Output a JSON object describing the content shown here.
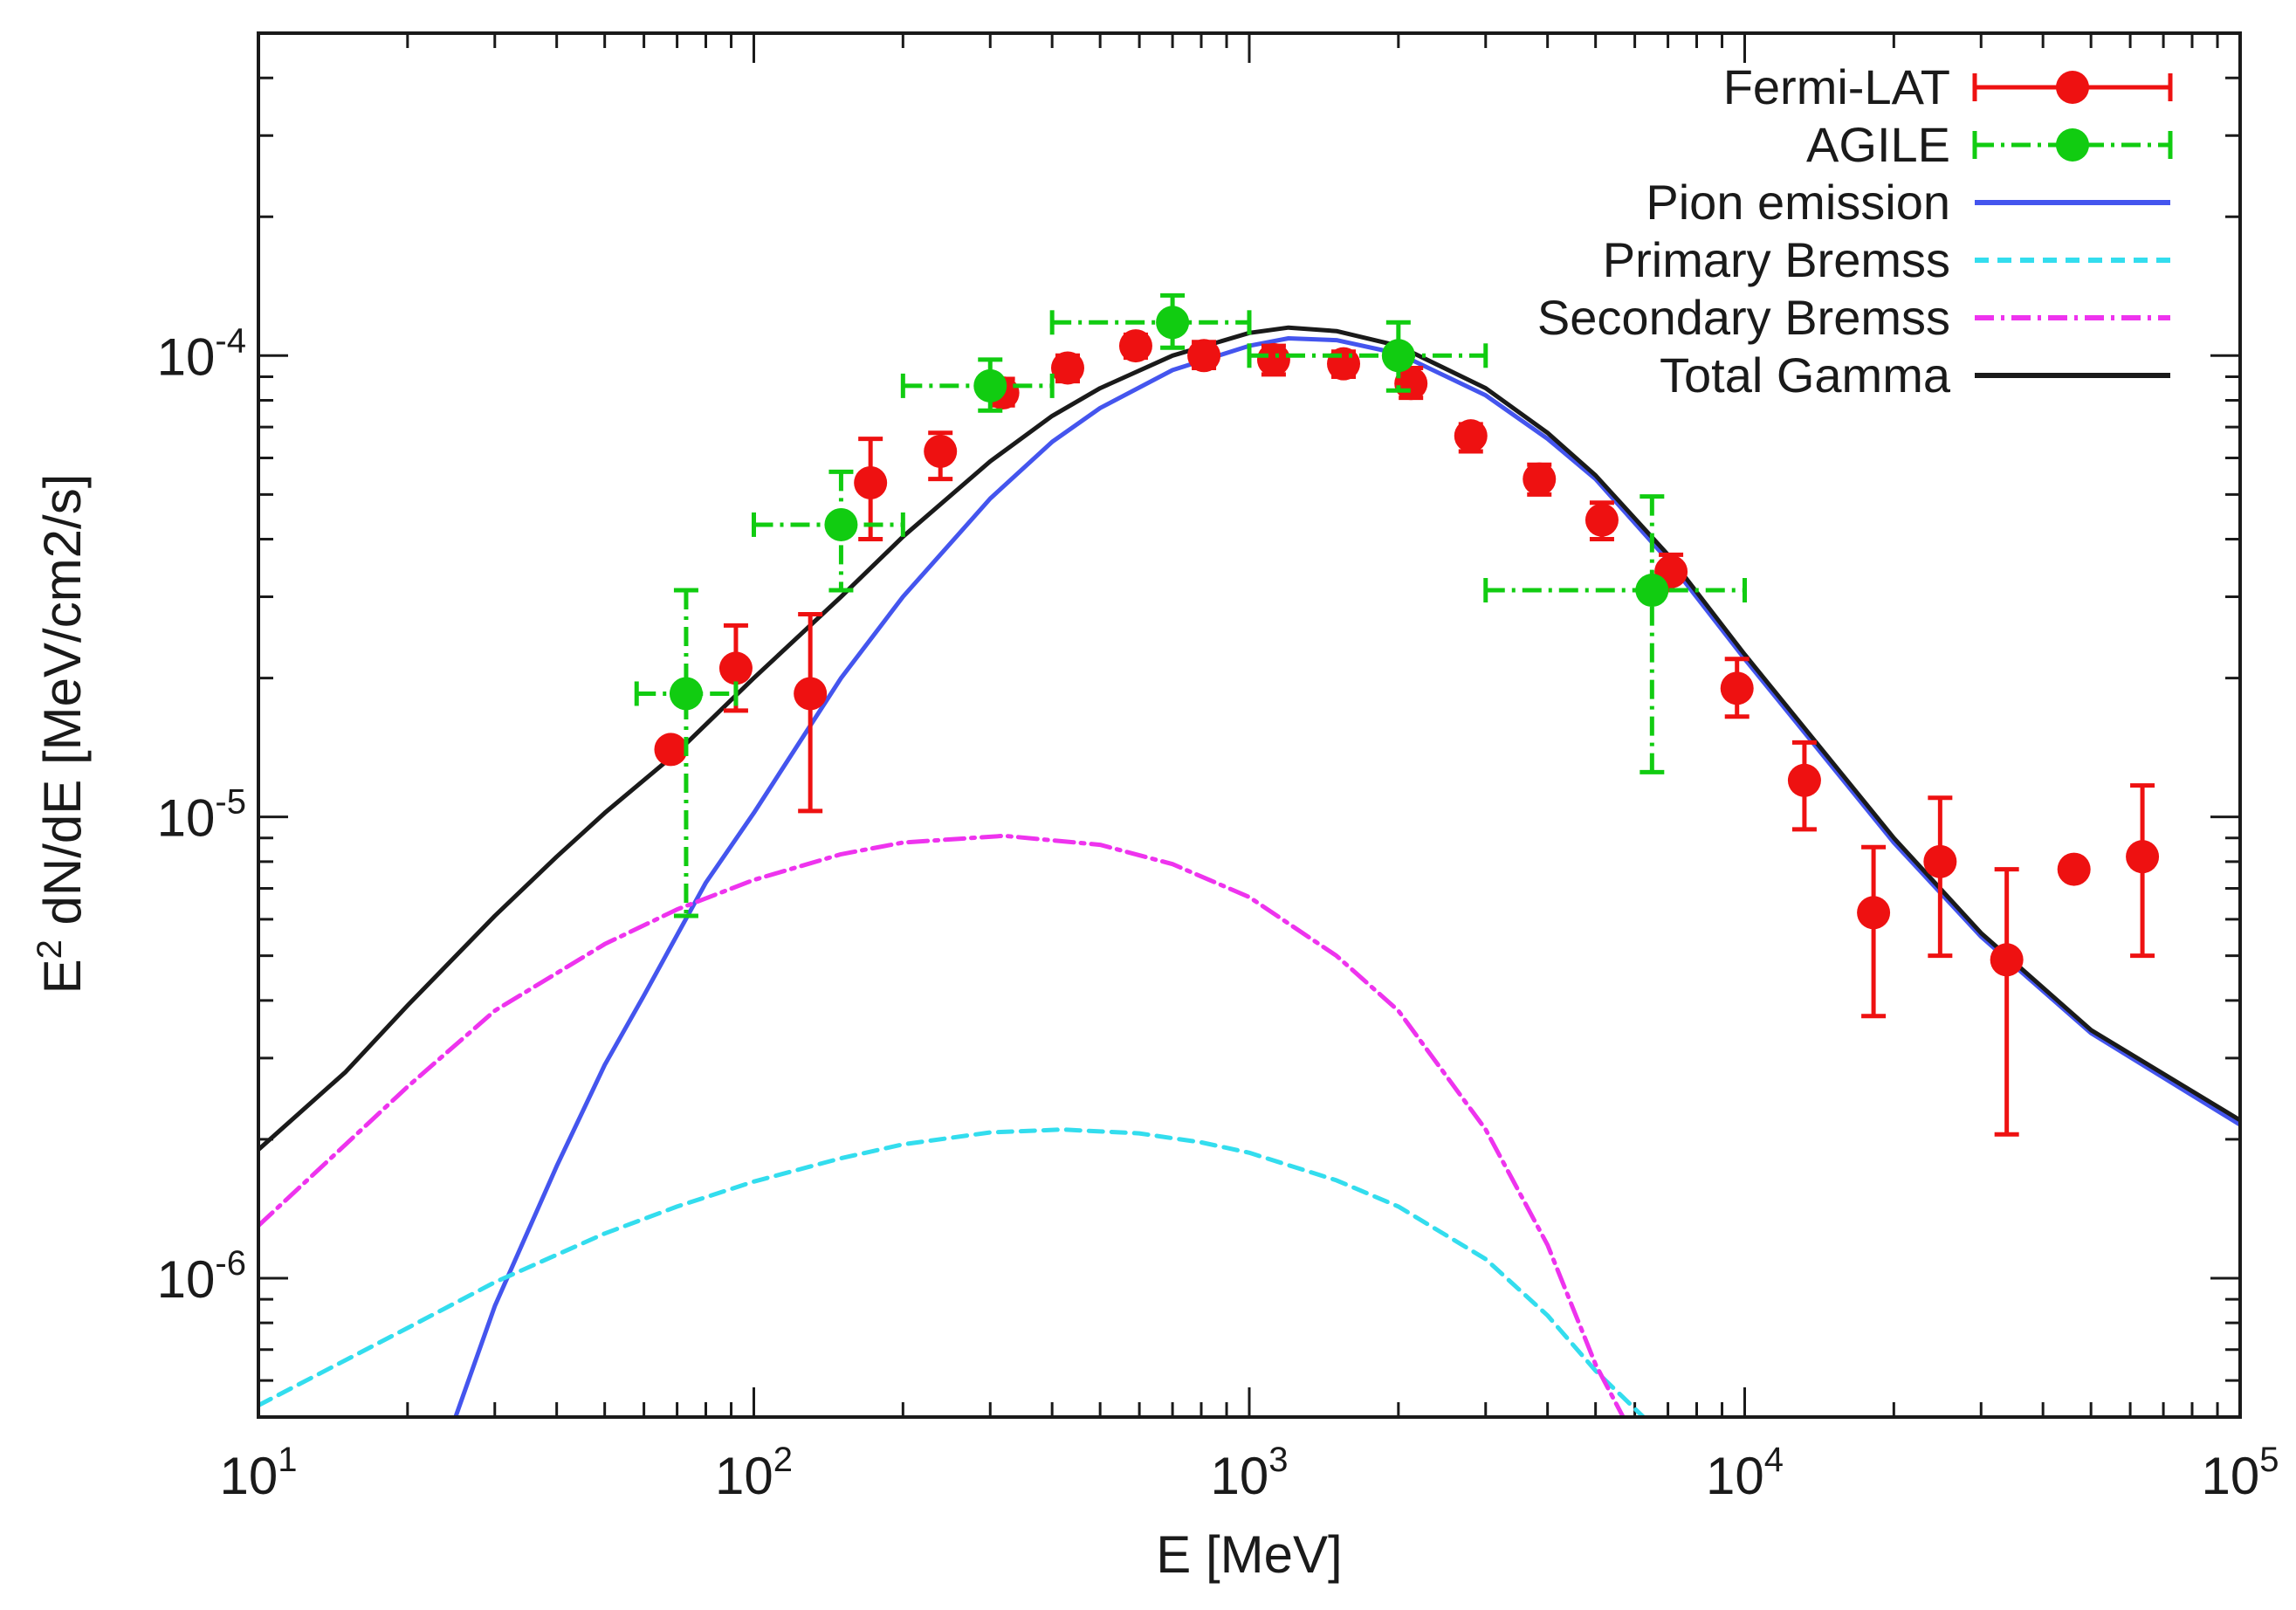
{
  "chart_data": {
    "type": "scatter",
    "title": "",
    "xlabel": "E [MeV]",
    "ylabel_parts": {
      "base": "E",
      "sup": "2",
      "rest": " dN/dE [MeV/cm2/s]"
    },
    "ylabel": "E2 dN/dE [MeV/cm2/s]",
    "xscale": "log",
    "yscale": "log",
    "xlim": [
      10,
      100000
    ],
    "ylim": [
      5e-07,
      0.0005
    ],
    "x_ticks": [
      {
        "value": 10,
        "base": "10",
        "exp": "1"
      },
      {
        "value": 100,
        "base": "10",
        "exp": "2"
      },
      {
        "value": 1000,
        "base": "10",
        "exp": "3"
      },
      {
        "value": 10000,
        "base": "10",
        "exp": "4"
      },
      {
        "value": 100000,
        "base": "10",
        "exp": "5"
      }
    ],
    "y_ticks": [
      {
        "value": 1e-06,
        "base": "10",
        "exp": "-6"
      },
      {
        "value": 1e-05,
        "base": "10",
        "exp": "-5"
      },
      {
        "value": 0.0001,
        "base": "10",
        "exp": "-4"
      }
    ],
    "legend_position": "top-right",
    "series": [
      {
        "name": "Fermi-LAT",
        "kind": "points",
        "color": "#ee1111",
        "points": [
          {
            "x": 68,
            "y": 1.4e-05,
            "ylo": 1.4e-05,
            "yhi": 1.4e-05
          },
          {
            "x": 92,
            "y": 2.1e-05,
            "ylo": 1.7e-05,
            "yhi": 2.6e-05
          },
          {
            "x": 130,
            "y": 1.85e-05,
            "ylo": 1.03e-05,
            "yhi": 2.75e-05
          },
          {
            "x": 172,
            "y": 5.3e-05,
            "ylo": 4e-05,
            "yhi": 6.6e-05
          },
          {
            "x": 238,
            "y": 6.2e-05,
            "ylo": 5.4e-05,
            "yhi": 6.8e-05
          },
          {
            "x": 318,
            "y": 8.3e-05,
            "ylo": 7.8e-05,
            "yhi": 8.9e-05
          },
          {
            "x": 430,
            "y": 9.4e-05,
            "ylo": 8.8e-05,
            "yhi": 0.0001
          },
          {
            "x": 590,
            "y": 0.000105,
            "ylo": 9.9e-05,
            "yhi": 0.000111
          },
          {
            "x": 810,
            "y": 0.0001,
            "ylo": 9.4e-05,
            "yhi": 0.000107
          },
          {
            "x": 1120,
            "y": 9.8e-05,
            "ylo": 9.1e-05,
            "yhi": 0.000105
          },
          {
            "x": 1550,
            "y": 9.6e-05,
            "ylo": 9e-05,
            "yhi": 0.000102
          },
          {
            "x": 2120,
            "y": 8.7e-05,
            "ylo": 8.1e-05,
            "yhi": 9.4e-05
          },
          {
            "x": 2800,
            "y": 6.7e-05,
            "ylo": 6.2e-05,
            "yhi": 7.1e-05
          },
          {
            "x": 3850,
            "y": 5.4e-05,
            "ylo": 5e-05,
            "yhi": 5.8e-05
          },
          {
            "x": 5150,
            "y": 4.4e-05,
            "ylo": 4e-05,
            "yhi": 4.8e-05
          },
          {
            "x": 7100,
            "y": 3.4e-05,
            "ylo": 3.1e-05,
            "yhi": 3.7e-05
          },
          {
            "x": 9650,
            "y": 1.9e-05,
            "ylo": 1.65e-05,
            "yhi": 2.2e-05
          },
          {
            "x": 13200,
            "y": 1.2e-05,
            "ylo": 9.4e-06,
            "yhi": 1.45e-05
          },
          {
            "x": 18200,
            "y": 6.2e-06,
            "ylo": 3.7e-06,
            "yhi": 8.6e-06
          },
          {
            "x": 24800,
            "y": 8e-06,
            "ylo": 5e-06,
            "yhi": 1.1e-05
          },
          {
            "x": 33800,
            "y": 4.9e-06,
            "ylo": 2.05e-06,
            "yhi": 7.7e-06
          },
          {
            "x": 46200,
            "y": 7.7e-06,
            "ylo": 7.7e-06,
            "yhi": 7.7e-06
          },
          {
            "x": 63500,
            "y": 8.2e-06,
            "ylo": 5e-06,
            "yhi": 1.17e-05
          }
        ]
      },
      {
        "name": "AGILE",
        "kind": "points",
        "color": "#11cc11",
        "points": [
          {
            "x": 73,
            "y": 1.85e-05,
            "xlo": 58,
            "xhi": 92,
            "ylo": 6.1e-06,
            "yhi": 3.1e-05
          },
          {
            "x": 150,
            "y": 4.3e-05,
            "xlo": 100,
            "xhi": 200,
            "ylo": 3.1e-05,
            "yhi": 5.6e-05
          },
          {
            "x": 300,
            "y": 8.6e-05,
            "xlo": 200,
            "xhi": 400,
            "ylo": 7.6e-05,
            "yhi": 9.8e-05
          },
          {
            "x": 700,
            "y": 0.000118,
            "xlo": 400,
            "xhi": 1000,
            "ylo": 0.000104,
            "yhi": 0.000135
          },
          {
            "x": 2000,
            "y": 0.0001,
            "xlo": 1000,
            "xhi": 3000,
            "ylo": 8.4e-05,
            "yhi": 0.000118
          },
          {
            "x": 6500,
            "y": 3.1e-05,
            "xlo": 3000,
            "xhi": 10000,
            "ylo": 1.25e-05,
            "yhi": 4.95e-05
          }
        ]
      },
      {
        "name": "Pion emission",
        "kind": "line",
        "color": "#4455ee",
        "dash": "",
        "points": [
          [
            25,
            5e-07
          ],
          [
            30,
            8.7e-07
          ],
          [
            40,
            1.75e-06
          ],
          [
            50,
            2.9e-06
          ],
          [
            60,
            4.1e-06
          ],
          [
            80,
            7.2e-06
          ],
          [
            100,
            1.02e-05
          ],
          [
            150,
            2e-05
          ],
          [
            200,
            3e-05
          ],
          [
            300,
            4.9e-05
          ],
          [
            400,
            6.5e-05
          ],
          [
            500,
            7.7e-05
          ],
          [
            700,
            9.3e-05
          ],
          [
            1000,
            0.000105
          ],
          [
            1200,
            0.000109
          ],
          [
            1500,
            0.000108
          ],
          [
            2000,
            0.000101
          ],
          [
            3000,
            8.2e-05
          ],
          [
            4000,
            6.6e-05
          ],
          [
            5000,
            5.4e-05
          ],
          [
            7000,
            3.6e-05
          ],
          [
            10000,
            2.2e-05
          ],
          [
            20000,
            8.8e-06
          ],
          [
            30000,
            5.5e-06
          ],
          [
            50000,
            3.4e-06
          ],
          [
            100000,
            2.15e-06
          ]
        ]
      },
      {
        "name": "Primary Bremss",
        "kind": "line",
        "color": "#33ddee",
        "dash": "16 10",
        "points": [
          [
            10,
            5.3e-07
          ],
          [
            20,
            7.8e-07
          ],
          [
            30,
            9.8e-07
          ],
          [
            50,
            1.25e-06
          ],
          [
            70,
            1.43e-06
          ],
          [
            100,
            1.62e-06
          ],
          [
            150,
            1.82e-06
          ],
          [
            200,
            1.95e-06
          ],
          [
            300,
            2.07e-06
          ],
          [
            420,
            2.1e-06
          ],
          [
            600,
            2.06e-06
          ],
          [
            800,
            1.97e-06
          ],
          [
            1000,
            1.87e-06
          ],
          [
            1500,
            1.63e-06
          ],
          [
            2000,
            1.43e-06
          ],
          [
            3000,
            1.1e-06
          ],
          [
            4000,
            8.3e-07
          ],
          [
            5000,
            6.3e-07
          ],
          [
            6500,
            4.8e-07
          ]
        ]
      },
      {
        "name": "Secondary Bremss",
        "kind": "line",
        "color": "#ee33ee",
        "dash": "22 8 4 8",
        "points": [
          [
            10,
            1.3e-06
          ],
          [
            20,
            2.6e-06
          ],
          [
            30,
            3.8e-06
          ],
          [
            50,
            5.3e-06
          ],
          [
            70,
            6.3e-06
          ],
          [
            100,
            7.3e-06
          ],
          [
            150,
            8.3e-06
          ],
          [
            200,
            8.8e-06
          ],
          [
            320,
            9.1e-06
          ],
          [
            500,
            8.7e-06
          ],
          [
            700,
            7.9e-06
          ],
          [
            1000,
            6.7e-06
          ],
          [
            1500,
            5e-06
          ],
          [
            2000,
            3.8e-06
          ],
          [
            3000,
            2.1e-06
          ],
          [
            4000,
            1.18e-06
          ],
          [
            5000,
            6.5e-07
          ],
          [
            5800,
            4.8e-07
          ]
        ]
      },
      {
        "name": "Total Gamma",
        "kind": "line",
        "color": "#1a1a1a",
        "dash": "",
        "points": [
          [
            10,
            1.9e-06
          ],
          [
            15,
            2.8e-06
          ],
          [
            20,
            3.9e-06
          ],
          [
            30,
            6.1e-06
          ],
          [
            40,
            8.2e-06
          ],
          [
            50,
            1.02e-05
          ],
          [
            70,
            1.38e-05
          ],
          [
            100,
            2e-05
          ],
          [
            150,
            3e-05
          ],
          [
            200,
            4.05e-05
          ],
          [
            300,
            5.9e-05
          ],
          [
            400,
            7.4e-05
          ],
          [
            500,
            8.5e-05
          ],
          [
            700,
            0.0001
          ],
          [
            1000,
            0.000112
          ],
          [
            1200,
            0.000115
          ],
          [
            1500,
            0.000113
          ],
          [
            2000,
            0.000105
          ],
          [
            3000,
            8.5e-05
          ],
          [
            4000,
            6.8e-05
          ],
          [
            5000,
            5.5e-05
          ],
          [
            7000,
            3.7e-05
          ],
          [
            10000,
            2.25e-05
          ],
          [
            20000,
            9e-06
          ],
          [
            30000,
            5.6e-06
          ],
          [
            50000,
            3.45e-06
          ],
          [
            100000,
            2.2e-06
          ]
        ]
      }
    ]
  }
}
